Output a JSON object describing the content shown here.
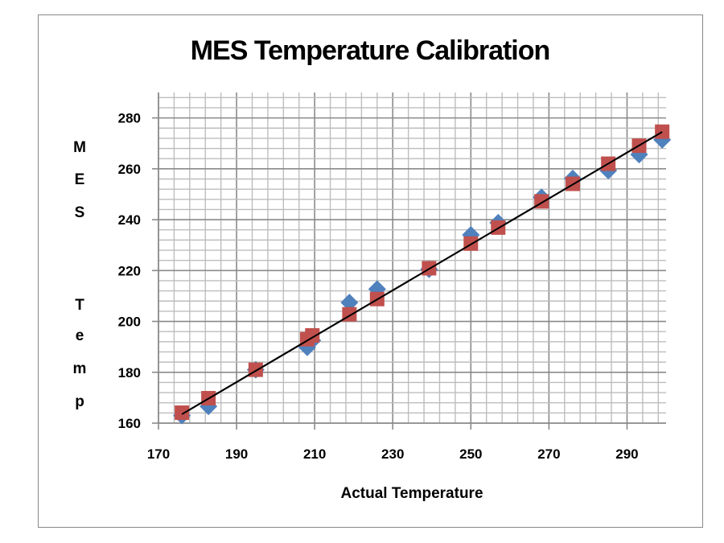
{
  "chart_data": {
    "type": "scatter",
    "title": "MES Temperature Calibration",
    "xlabel": "Actual Temperature",
    "ylabel": "MES Temp",
    "ylabel_letters": [
      "M",
      "E",
      "S",
      "",
      "T",
      "e",
      "m",
      "p"
    ],
    "xlim": [
      170,
      300
    ],
    "ylim": [
      160,
      290
    ],
    "x_ticks": [
      170,
      190,
      210,
      230,
      250,
      270,
      290
    ],
    "y_ticks": [
      160,
      180,
      200,
      220,
      240,
      260,
      280
    ],
    "minor_grid_step": 4,
    "grid": true,
    "legend": "none",
    "series": [
      {
        "marker": "diamond",
        "color": "#4F81BD",
        "x": [
          176,
          182.8,
          194.9,
          208.1,
          209.4,
          218.9,
          226,
          239.3,
          250,
          257,
          268.1,
          276.1,
          285.2,
          293.1,
          299
        ],
        "y": [
          163,
          166.6,
          181,
          189.8,
          192.5,
          207.4,
          212.7,
          220.5,
          234,
          238.8,
          248.8,
          256.2,
          259.3,
          265.6,
          271.4
        ]
      },
      {
        "marker": "square",
        "color": "#C0504D",
        "x": [
          176,
          182.8,
          194.9,
          208.1,
          209.4,
          218.9,
          226,
          239.3,
          250,
          257,
          268.1,
          276.1,
          285.2,
          293.1,
          299
        ],
        "y": [
          164.1,
          169.8,
          181,
          193,
          194.5,
          202.8,
          208.8,
          220.9,
          230.6,
          236.9,
          247.2,
          254.1,
          262,
          269.1,
          274.6
        ]
      }
    ],
    "trendline": {
      "color": "#000000",
      "x": [
        176,
        299
      ],
      "y": [
        163.5,
        274.5
      ]
    }
  }
}
